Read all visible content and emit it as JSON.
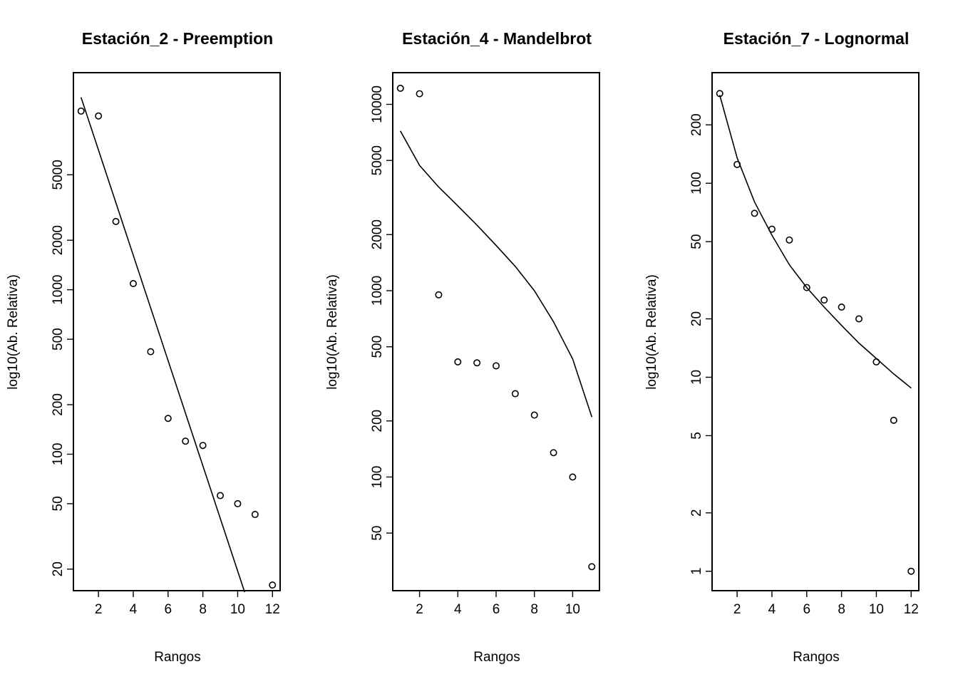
{
  "chart_data": [
    {
      "type": "scatter",
      "title": "Estación_2 - Preemption",
      "xlabel": "Rangos",
      "ylabel": "log10(Ab. Relativa)",
      "log_y": true,
      "xlim": [
        0.56,
        12.44
      ],
      "ylim_log10": [
        1.17,
        4.32
      ],
      "xticks": [
        2,
        4,
        6,
        8,
        10,
        12
      ],
      "yticks": [
        20,
        50,
        100,
        200,
        500,
        1000,
        2000,
        5000
      ],
      "ytick_labels": [
        "20",
        "50",
        "100",
        "200",
        "500",
        "1000",
        "2000",
        "5000"
      ],
      "points": {
        "x": [
          1,
          2,
          3,
          4,
          5,
          6,
          7,
          8,
          9,
          10,
          11,
          12
        ],
        "y": [
          12200,
          11400,
          2600,
          1090,
          420,
          165,
          120,
          113,
          56,
          50,
          43,
          16
        ]
      },
      "fit": {
        "x": [
          1,
          10.4
        ],
        "y": [
          14800,
          14.5
        ]
      },
      "grid": false,
      "legend": "none"
    },
    {
      "type": "scatter",
      "title": "Estación_4 - Mandelbrot",
      "xlabel": "Rangos",
      "ylabel": "log10(Ab. Relativa)",
      "log_y": true,
      "xlim": [
        0.6,
        11.4
      ],
      "ylim_log10": [
        1.39,
        4.17
      ],
      "xticks": [
        2,
        4,
        6,
        8,
        10
      ],
      "yticks": [
        50,
        100,
        200,
        500,
        1000,
        2000,
        5000,
        10000
      ],
      "ytick_labels": [
        "50",
        "100",
        "200",
        "500",
        "1000",
        "2000",
        "5000",
        "10000"
      ],
      "points": {
        "x": [
          1,
          2,
          3,
          4,
          5,
          6,
          7,
          8,
          9,
          10,
          11
        ],
        "y": [
          12200,
          11400,
          950,
          415,
          410,
          395,
          280,
          215,
          135,
          100,
          33
        ]
      },
      "fit": {
        "x": [
          1,
          2,
          3,
          4,
          5,
          6,
          7,
          8,
          9,
          10,
          11
        ],
        "y": [
          7200,
          4700,
          3600,
          2850,
          2250,
          1750,
          1350,
          1000,
          680,
          430,
          210
        ]
      },
      "grid": false,
      "legend": "none"
    },
    {
      "type": "scatter",
      "title": "Estación_7 - Lognormal",
      "xlabel": "Rangos",
      "ylabel": "log10(Ab. Relativa)",
      "log_y": true,
      "xlim": [
        0.56,
        12.44
      ],
      "ylim_log10": [
        -0.1,
        2.57
      ],
      "xticks": [
        2,
        4,
        6,
        8,
        10,
        12
      ],
      "yticks": [
        1,
        2,
        5,
        10,
        20,
        50,
        100,
        200
      ],
      "ytick_labels": [
        "1",
        "2",
        "5",
        "10",
        "20",
        "50",
        "100",
        "200"
      ],
      "points": {
        "x": [
          1,
          2,
          3,
          4,
          5,
          6,
          7,
          8,
          9,
          10,
          11,
          12
        ],
        "y": [
          290,
          125,
          70,
          58,
          51,
          29,
          25,
          23,
          20,
          12,
          6,
          1
        ]
      },
      "fit": {
        "x": [
          1,
          2,
          3,
          4,
          5,
          6,
          7,
          8,
          9,
          10,
          11,
          12
        ],
        "y": [
          285,
          135,
          80,
          54,
          38,
          29,
          23,
          18.5,
          15,
          12.5,
          10.4,
          8.8
        ]
      },
      "grid": false,
      "legend": "none"
    }
  ]
}
